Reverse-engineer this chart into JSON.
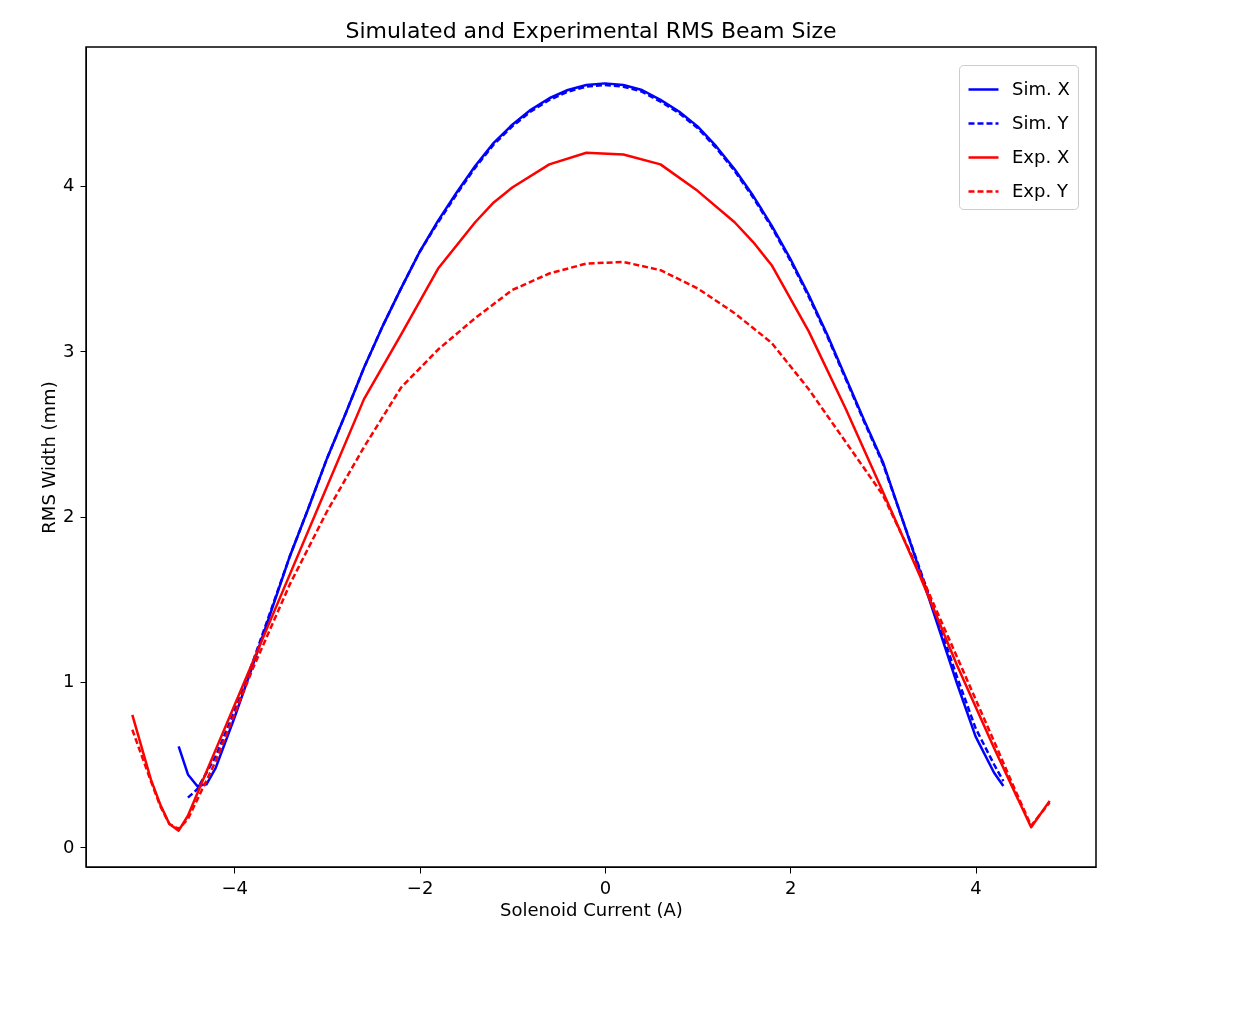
{
  "chart_data": {
    "type": "line",
    "title": "Simulated and Experimental RMS Beam Size",
    "xlabel": "Solenoid Current (A)",
    "ylabel": "RMS Width (mm)",
    "xlim": [
      -5.6,
      5.3
    ],
    "ylim": [
      -0.12,
      4.84
    ],
    "xticks": [
      -4,
      -2,
      0,
      2,
      4
    ],
    "yticks": [
      0,
      1,
      2,
      3,
      4
    ],
    "grid": false,
    "legend": "top right",
    "series": [
      {
        "name": "Sim. X",
        "color": "#0000ff",
        "line_style": "solid",
        "x": [
          -4.6,
          -4.5,
          -4.4,
          -4.3,
          -4.2,
          -4.0,
          -3.8,
          -3.6,
          -3.4,
          -3.2,
          -3.0,
          -2.8,
          -2.6,
          -2.4,
          -2.2,
          -2.0,
          -1.8,
          -1.6,
          -1.4,
          -1.2,
          -1.0,
          -0.8,
          -0.6,
          -0.4,
          -0.2,
          0.0,
          0.2,
          0.4,
          0.6,
          0.8,
          1.0,
          1.2,
          1.4,
          1.6,
          1.8,
          2.0,
          2.2,
          2.4,
          2.6,
          2.8,
          3.0,
          3.2,
          3.4,
          3.6,
          3.8,
          4.0,
          4.2,
          4.3
        ],
        "values": [
          0.61,
          0.44,
          0.37,
          0.38,
          0.48,
          0.78,
          1.1,
          1.43,
          1.76,
          2.05,
          2.35,
          2.62,
          2.9,
          3.15,
          3.38,
          3.6,
          3.79,
          3.96,
          4.12,
          4.26,
          4.37,
          4.46,
          4.53,
          4.58,
          4.61,
          4.62,
          4.61,
          4.58,
          4.52,
          4.45,
          4.36,
          4.24,
          4.1,
          3.94,
          3.76,
          3.56,
          3.34,
          3.1,
          2.84,
          2.58,
          2.33,
          2.0,
          1.67,
          1.33,
          0.99,
          0.67,
          0.45,
          0.37
        ]
      },
      {
        "name": "Sim. Y",
        "color": "#0000ff",
        "line_style": "dashed",
        "x": [
          -4.5,
          -4.4,
          -4.3,
          -4.2,
          -4.0,
          -3.8,
          -3.6,
          -3.4,
          -3.2,
          -3.0,
          -2.8,
          -2.6,
          -2.4,
          -2.2,
          -2.0,
          -1.8,
          -1.6,
          -1.4,
          -1.2,
          -1.0,
          -0.8,
          -0.6,
          -0.4,
          -0.2,
          0.0,
          0.2,
          0.4,
          0.6,
          0.8,
          1.0,
          1.2,
          1.4,
          1.6,
          1.8,
          2.0,
          2.2,
          2.4,
          2.6,
          2.8,
          3.0,
          3.2,
          3.4,
          3.6,
          3.8,
          4.0,
          4.2,
          4.3
        ],
        "values": [
          0.3,
          0.35,
          0.45,
          0.55,
          0.82,
          1.12,
          1.44,
          1.76,
          2.05,
          2.35,
          2.62,
          2.9,
          3.15,
          3.38,
          3.6,
          3.78,
          3.95,
          4.11,
          4.25,
          4.36,
          4.45,
          4.52,
          4.57,
          4.6,
          4.61,
          4.6,
          4.57,
          4.51,
          4.44,
          4.35,
          4.23,
          4.09,
          3.93,
          3.75,
          3.55,
          3.33,
          3.09,
          2.83,
          2.57,
          2.32,
          2.0,
          1.68,
          1.36,
          1.03,
          0.72,
          0.5,
          0.4
        ]
      },
      {
        "name": "Exp. X",
        "color": "#ff0000",
        "line_style": "solid",
        "x": [
          -5.1,
          -4.9,
          -4.8,
          -4.7,
          -4.6,
          -4.5,
          -4.2,
          -3.8,
          -3.4,
          -3.0,
          -2.6,
          -2.2,
          -1.8,
          -1.4,
          -1.2,
          -1.0,
          -0.6,
          -0.2,
          0.2,
          0.6,
          1.0,
          1.4,
          1.6,
          1.8,
          2.2,
          2.6,
          3.0,
          3.4,
          3.8,
          4.2,
          4.4,
          4.6,
          4.8
        ],
        "values": [
          0.8,
          0.41,
          0.26,
          0.14,
          0.1,
          0.19,
          0.59,
          1.12,
          1.65,
          2.18,
          2.71,
          3.1,
          3.5,
          3.78,
          3.9,
          3.99,
          4.13,
          4.2,
          4.19,
          4.13,
          3.97,
          3.78,
          3.66,
          3.52,
          3.12,
          2.65,
          2.15,
          1.64,
          1.1,
          0.6,
          0.36,
          0.12,
          0.28
        ]
      },
      {
        "name": "Exp. Y",
        "color": "#ff0000",
        "line_style": "dashed",
        "x": [
          -5.1,
          -4.9,
          -4.8,
          -4.7,
          -4.6,
          -4.5,
          -4.2,
          -3.8,
          -3.4,
          -3.0,
          -2.6,
          -2.2,
          -1.8,
          -1.4,
          -1.0,
          -0.6,
          -0.2,
          0.2,
          0.6,
          1.0,
          1.4,
          1.8,
          2.2,
          2.6,
          3.0,
          3.4,
          3.8,
          4.2,
          4.4,
          4.6,
          4.8
        ],
        "values": [
          0.71,
          0.4,
          0.25,
          0.14,
          0.11,
          0.17,
          0.52,
          1.08,
          1.59,
          2.03,
          2.42,
          2.78,
          3.01,
          3.2,
          3.37,
          3.47,
          3.53,
          3.54,
          3.49,
          3.38,
          3.23,
          3.05,
          2.77,
          2.45,
          2.13,
          1.66,
          1.15,
          0.64,
          0.38,
          0.13,
          0.27
        ]
      }
    ]
  }
}
